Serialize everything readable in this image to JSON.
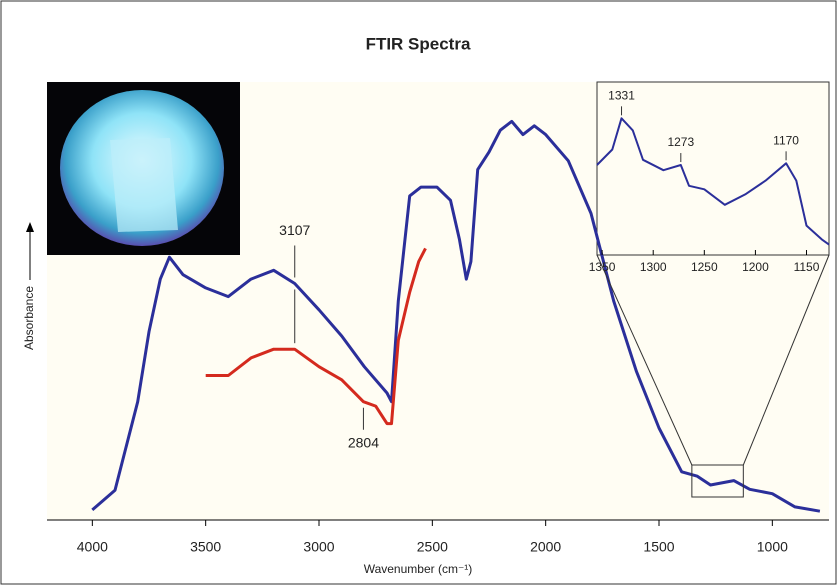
{
  "chart_data": [
    {
      "type": "line",
      "title": "FTIR Spectra",
      "x_label": "Wavenumber (cm⁻¹)",
      "y_label": "Absorbance",
      "xlim": [
        4200,
        750
      ],
      "xticks": [
        4000,
        3500,
        3000,
        2500,
        2000,
        1500,
        1000
      ],
      "ylim": [
        0,
        100
      ],
      "series": [
        {
          "color": "#2b2f9a",
          "x": [
            4000,
            3900,
            3800,
            3750,
            3700,
            3660,
            3600,
            3500,
            3400,
            3300,
            3200,
            3107,
            3000,
            2900,
            2800,
            2700,
            2680,
            2650,
            2600,
            2550,
            2480,
            2420,
            2380,
            2350,
            2330,
            2300,
            2250,
            2200,
            2150,
            2100,
            2050,
            2000,
            1900,
            1800,
            1700,
            1600,
            1500,
            1400,
            1331,
            1273,
            1170,
            1100,
            1000,
            900,
            790
          ],
          "values": [
            2.3,
            6.8,
            27,
            43,
            55,
            60,
            56,
            53,
            51,
            55,
            57,
            54,
            48,
            42,
            35,
            29,
            27,
            50,
            74,
            76,
            76,
            73,
            64,
            55,
            59,
            80,
            84,
            89,
            91,
            88,
            90,
            88,
            82,
            70,
            50,
            34,
            21,
            11,
            10,
            8,
            9,
            7,
            6,
            3,
            2
          ]
        },
        {
          "color": "#d42a1e",
          "x": [
            3500,
            3400,
            3300,
            3200,
            3107,
            3000,
            2900,
            2804,
            2750,
            2700,
            2680,
            2650,
            2600,
            2560,
            2530
          ],
          "values": [
            33,
            33,
            37,
            39,
            39,
            35,
            32,
            27,
            26,
            22,
            22,
            41,
            52,
            59,
            62
          ]
        }
      ],
      "annotations": [
        {
          "text": "3107",
          "x": 3107
        },
        {
          "text": "2804",
          "x": 2804
        }
      ]
    },
    {
      "type": "line",
      "xlim": [
        1355,
        1128
      ],
      "xticks": [
        1350,
        1300,
        1250,
        1200,
        1150
      ],
      "ylim": [
        0,
        100
      ],
      "series": [
        {
          "color": "#2b2f9a",
          "x": [
            1355,
            1340,
            1331,
            1320,
            1310,
            1290,
            1273,
            1265,
            1250,
            1230,
            1210,
            1190,
            1170,
            1160,
            1150,
            1135,
            1128
          ],
          "values": [
            52,
            61,
            79,
            72,
            55,
            49,
            52,
            40,
            38,
            29,
            35,
            43,
            53,
            43,
            17,
            9,
            6
          ]
        }
      ],
      "annotations": [
        {
          "text": "1331",
          "x": 1331
        },
        {
          "text": "1273",
          "x": 1273
        },
        {
          "text": "1170",
          "x": 1170
        }
      ]
    }
  ]
}
